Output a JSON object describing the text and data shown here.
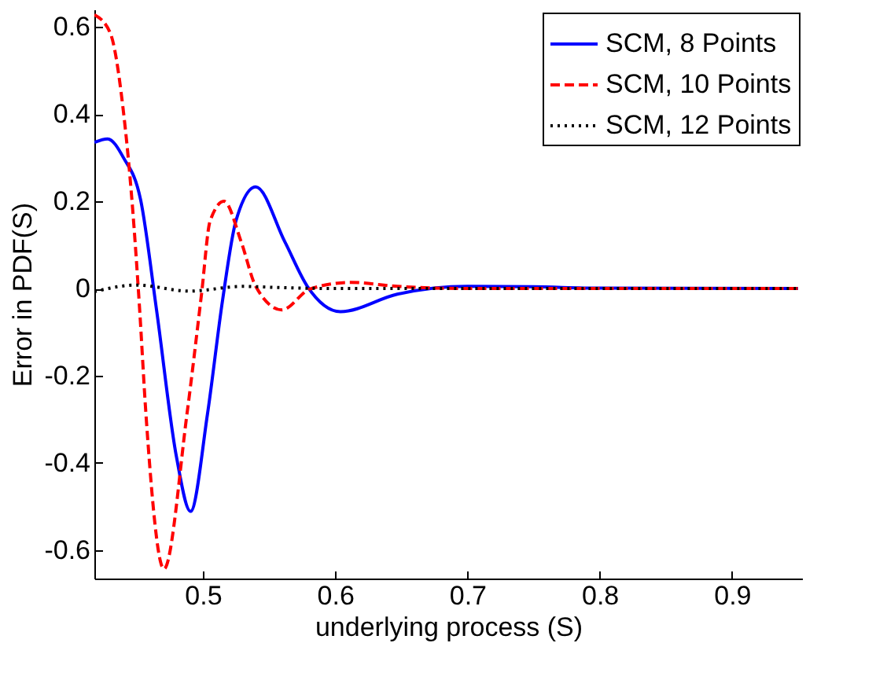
{
  "chart_data": {
    "type": "line",
    "xlabel": "underlying process (S)",
    "ylabel": "Error in PDF(S)",
    "xlim": [
      0.418,
      0.953
    ],
    "ylim": [
      -0.665,
      0.64
    ],
    "xticks": [
      0.5,
      0.6,
      0.7,
      0.8,
      0.9
    ],
    "yticks": [
      -0.6,
      -0.4,
      -0.2,
      0,
      0.2,
      0.4,
      0.6
    ],
    "grid": false,
    "legend": "top right",
    "series": [
      {
        "name": "SCM, 8 Points",
        "color": "#0000ff",
        "line_style": "solid",
        "x": [
          0.418,
          0.428,
          0.44,
          0.453,
          0.465,
          0.48,
          0.4907,
          0.5035,
          0.515,
          0.525,
          0.54,
          0.562,
          0.579,
          0.604,
          0.647,
          0.7,
          0.75,
          0.8,
          0.95
        ],
        "values": [
          0.335,
          0.343,
          0.3,
          0.203,
          -0.049,
          -0.385,
          -0.511,
          -0.288,
          -0.025,
          0.155,
          0.233,
          0.107,
          0.005,
          -0.053,
          -0.013,
          0.005,
          0.004,
          0.001,
          0
        ]
      },
      {
        "name": "SCM, 10 Points",
        "color": "#ff0000",
        "line_style": "dashed",
        "x": [
          0.418,
          0.43,
          0.4395,
          0.447,
          0.452,
          0.457,
          0.4706,
          0.488,
          0.499,
          0.5055,
          0.516,
          0.529,
          0.54,
          0.5597,
          0.581,
          0.612,
          0.647,
          0.7,
          0.95
        ],
        "values": [
          0.628,
          0.586,
          0.418,
          0.18,
          -0.037,
          -0.288,
          -0.643,
          -0.288,
          -0.013,
          0.155,
          0.2,
          0.107,
          0.005,
          -0.049,
          -0.001,
          0.014,
          0.005,
          0,
          0
        ]
      },
      {
        "name": "SCM, 12 Points",
        "color": "#000000",
        "line_style": "dotted",
        "x": [
          0.418,
          0.45,
          0.49,
          0.53,
          0.56,
          0.6,
          0.95
        ],
        "values": [
          -0.007,
          0.008,
          -0.006,
          0.005,
          0.002,
          0,
          0
        ]
      }
    ]
  }
}
